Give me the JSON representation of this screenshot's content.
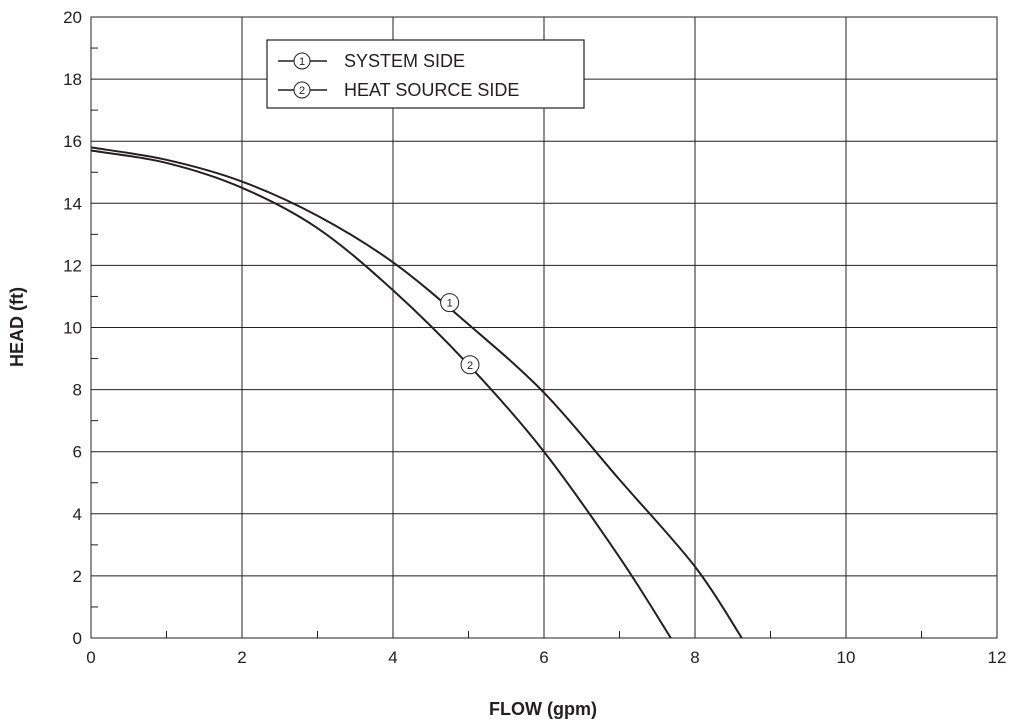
{
  "chart_data": {
    "type": "line",
    "title": "",
    "xlabel": "FLOW (gpm)",
    "ylabel": "HEAD (ft)",
    "xlim": [
      0,
      12
    ],
    "ylim": [
      0,
      20
    ],
    "x_ticks": [
      "0",
      "2",
      "4",
      "6",
      "8",
      "10",
      "12"
    ],
    "y_ticks": [
      "0",
      "2",
      "4",
      "6",
      "8",
      "10",
      "12",
      "14",
      "16",
      "18",
      "20"
    ],
    "grid": true,
    "legend_position": "top-left",
    "line_color": "#231f20",
    "series": [
      {
        "name": "SYSTEM SIDE",
        "marker": "1",
        "marker_label_at": [
          4.75,
          10.8
        ],
        "x": [
          0,
          1,
          2,
          3,
          4,
          5,
          6,
          7,
          8,
          8.62
        ],
        "y": [
          15.8,
          15.4,
          14.7,
          13.6,
          12.1,
          10.1,
          7.9,
          5.1,
          2.3,
          0
        ]
      },
      {
        "name": "HEAT SOURCE SIDE",
        "marker": "2",
        "marker_label_at": [
          5.02,
          8.8
        ],
        "x": [
          0,
          1,
          2,
          3,
          4,
          5,
          6,
          7,
          7.68
        ],
        "y": [
          15.7,
          15.3,
          14.5,
          13.2,
          11.2,
          8.8,
          6.0,
          2.6,
          0
        ]
      }
    ]
  }
}
